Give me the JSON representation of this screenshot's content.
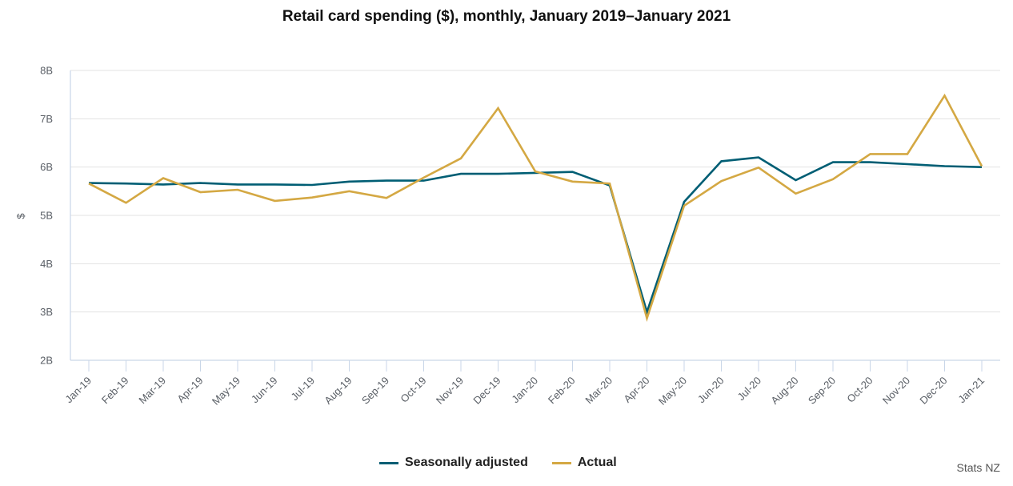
{
  "chart_data": {
    "type": "line",
    "title": "Retail card spending ($), monthly, January 2019–January 2021",
    "xlabel": "",
    "ylabel": "$",
    "ylim": [
      2,
      8
    ],
    "yticks": [
      "2B",
      "3B",
      "4B",
      "5B",
      "6B",
      "7B",
      "8B"
    ],
    "ytick_values": [
      2,
      3,
      4,
      5,
      6,
      7,
      8
    ],
    "y_units": "billions NZD",
    "grid": true,
    "legend_position": "bottom-center",
    "categories": [
      "Jan-19",
      "Feb-19",
      "Mar-19",
      "Apr-19",
      "May-19",
      "Jun-19",
      "Jul-19",
      "Aug-19",
      "Sep-19",
      "Oct-19",
      "Nov-19",
      "Dec-19",
      "Jan-20",
      "Feb-20",
      "Mar-20",
      "Apr-20",
      "May-20",
      "Jun-20",
      "Jul-20",
      "Aug-20",
      "Sep-20",
      "Oct-20",
      "Nov-20",
      "Dec-20",
      "Jan-21"
    ],
    "series": [
      {
        "name": "Seasonally adjusted",
        "color": "#005e74",
        "values": [
          5.67,
          5.66,
          5.64,
          5.67,
          5.64,
          5.64,
          5.63,
          5.7,
          5.72,
          5.72,
          5.86,
          5.86,
          5.88,
          5.9,
          5.62,
          3.0,
          5.28,
          6.12,
          6.2,
          5.73,
          6.1,
          6.1,
          6.06,
          6.02,
          6.0
        ]
      },
      {
        "name": "Actual",
        "color": "#d4a843",
        "values": [
          5.66,
          5.26,
          5.77,
          5.48,
          5.53,
          5.3,
          5.37,
          5.5,
          5.36,
          5.78,
          6.18,
          7.22,
          5.91,
          5.7,
          5.66,
          2.87,
          5.2,
          5.71,
          5.99,
          5.45,
          5.75,
          6.27,
          6.27,
          7.48,
          6.02
        ]
      }
    ]
  },
  "source": "Stats NZ"
}
